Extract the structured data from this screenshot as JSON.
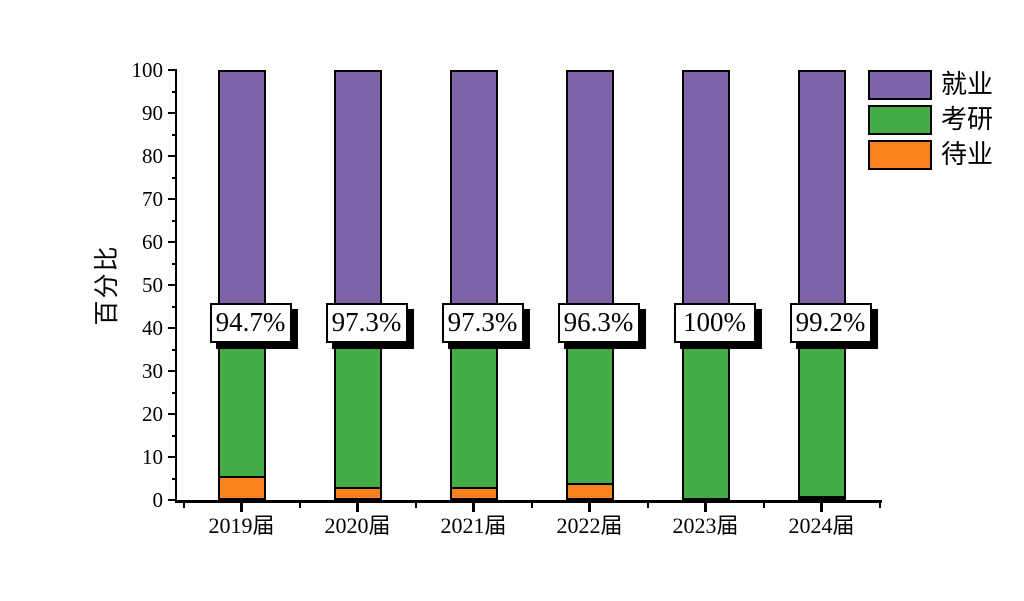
{
  "chart_data": {
    "type": "bar",
    "stacked": true,
    "title": "",
    "ylabel": "百分比",
    "xlabel": "",
    "ylim": [
      0,
      100
    ],
    "yticks": [
      0,
      10,
      20,
      30,
      40,
      50,
      60,
      70,
      80,
      90,
      100
    ],
    "ytick_minor_step": 5,
    "grid": false,
    "legend_position": "top-right",
    "categories": [
      "2019届",
      "2020届",
      "2021届",
      "2022届",
      "2023届",
      "2024届"
    ],
    "series": [
      {
        "name": "待业",
        "color": "#F9821D",
        "values": [
          5.3,
          2.7,
          2.7,
          3.7,
          0,
          0.8
        ]
      },
      {
        "name": "考研",
        "color": "#44AC47",
        "values": [
          35.7,
          38.3,
          38.3,
          37.3,
          41,
          40.2
        ]
      },
      {
        "name": "就业",
        "color": "#7E63A8",
        "values": [
          59,
          59,
          59,
          59,
          59,
          59
        ]
      }
    ],
    "bar_labels": [
      "94.7%",
      "97.3%",
      "97.3%",
      "96.3%",
      "100%",
      "99.2%"
    ],
    "legend": [
      {
        "label": "就业",
        "color": "#7E63A8"
      },
      {
        "label": "考研",
        "color": "#44AC47"
      },
      {
        "label": "待业",
        "color": "#F9821D"
      }
    ],
    "colors": {
      "axis": "#000000",
      "text": "#000000",
      "label_box_bg": "#ffffff",
      "label_box_shadow": "#000000"
    }
  }
}
